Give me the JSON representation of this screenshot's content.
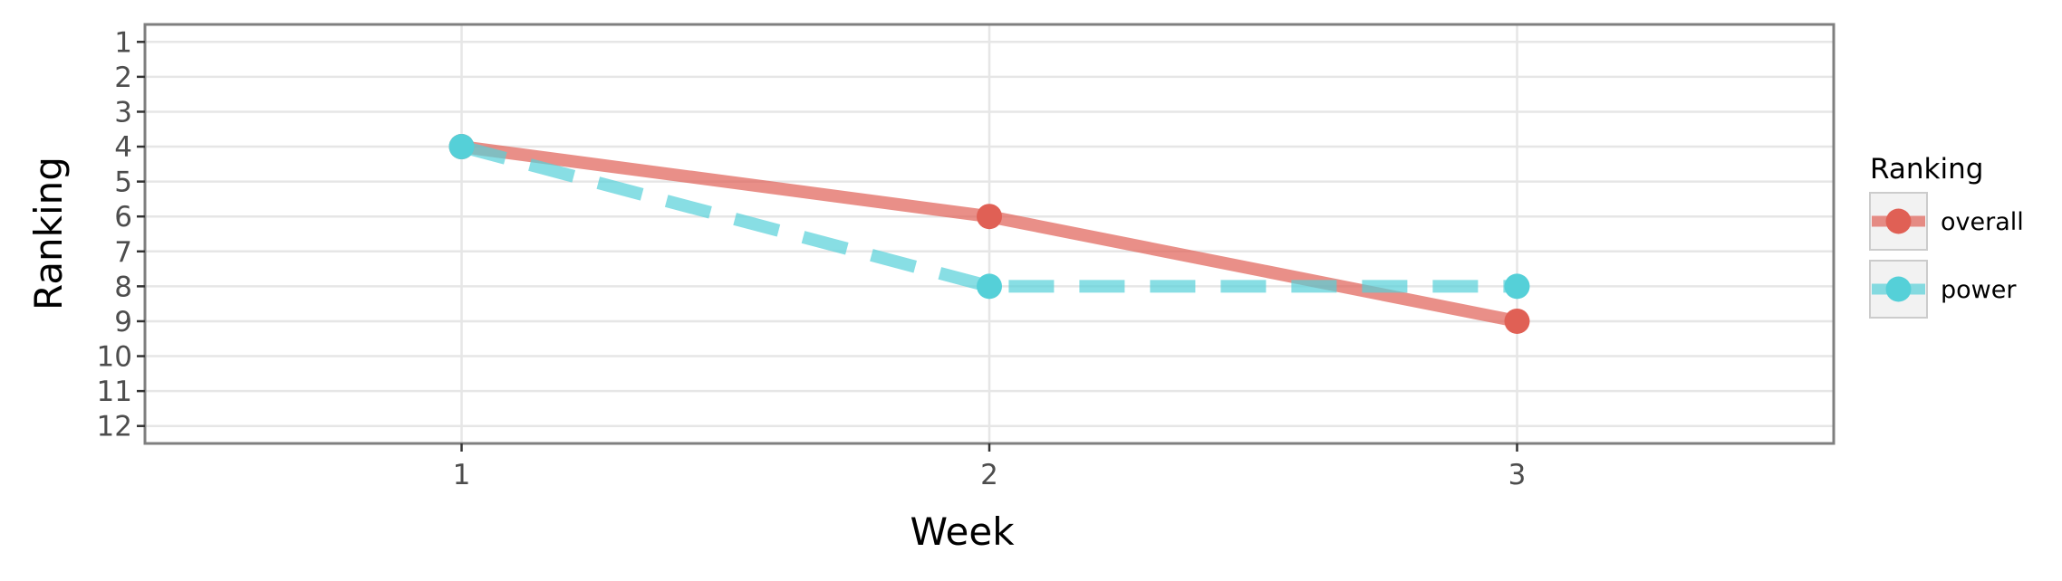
{
  "chart_data": {
    "type": "line",
    "xlabel": "Week",
    "ylabel": "Ranking",
    "x": [
      1,
      2,
      3
    ],
    "xticks": [
      "1",
      "2",
      "3"
    ],
    "xlim": [
      0.4,
      3.6
    ],
    "yticks": [
      "1",
      "2",
      "3",
      "4",
      "5",
      "6",
      "7",
      "8",
      "9",
      "10",
      "11",
      "12"
    ],
    "ylim": [
      12.5,
      0.5
    ],
    "y_reversed": true,
    "grid": true,
    "legend": {
      "title": "Ranking",
      "placement": "right"
    },
    "series": [
      {
        "name": "overall",
        "values": [
          4,
          6,
          9
        ],
        "color": "#e06055",
        "line_style": "solid"
      },
      {
        "name": "power",
        "values": [
          4,
          8,
          8
        ],
        "color": "#55d0d8",
        "line_style": "dashed"
      }
    ]
  }
}
